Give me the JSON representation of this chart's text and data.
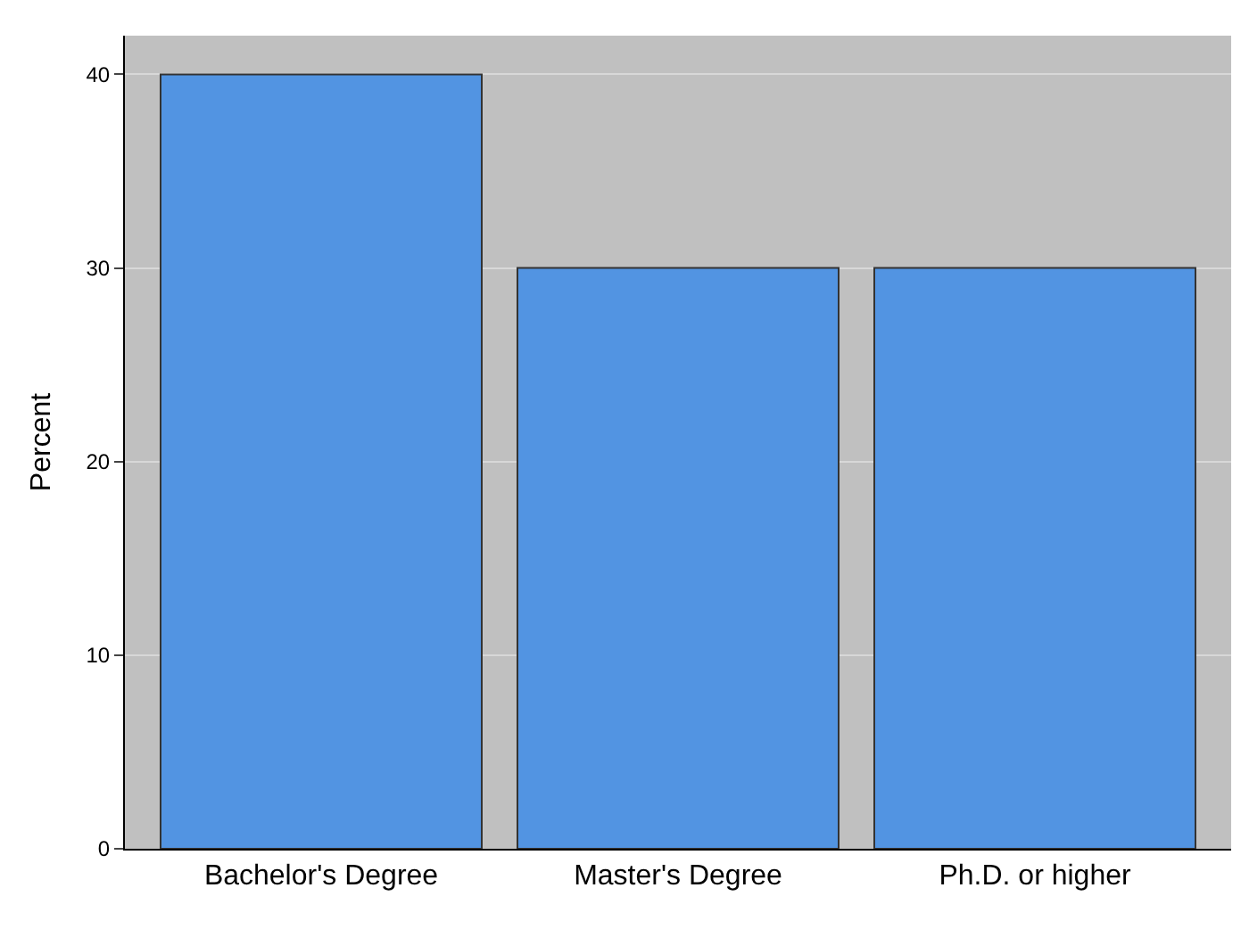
{
  "chart_data": {
    "type": "bar",
    "ylabel": "Percent",
    "categories": [
      "Bachelor's Degree",
      "Master's Degree",
      "Ph.D. or higher"
    ],
    "values": [
      40,
      30,
      30
    ],
    "color": "#5294e2",
    "ylim": [
      0,
      42
    ],
    "yticks": [
      0,
      10,
      20,
      30,
      40
    ],
    "grid": "y"
  }
}
